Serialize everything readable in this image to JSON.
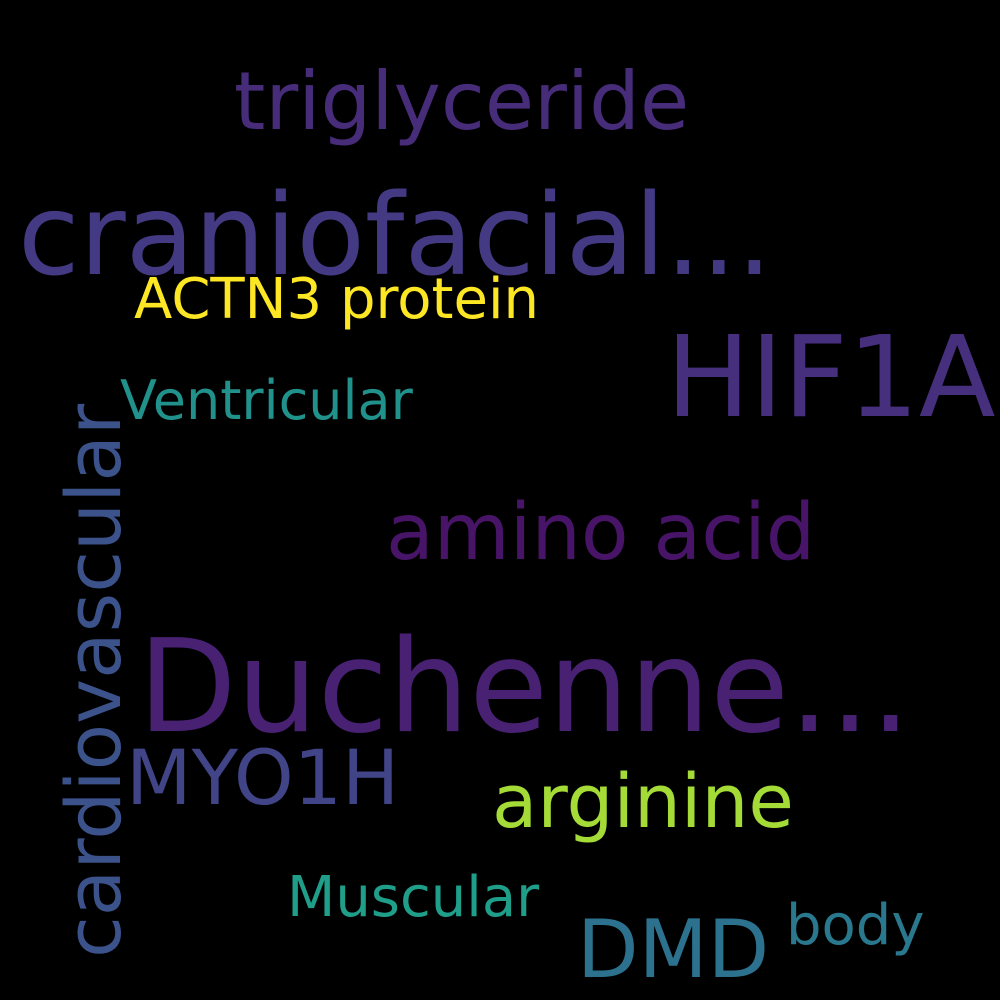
{
  "words": {
    "triglyceride": {
      "text": "triglyceride",
      "color": "#472c7a"
    },
    "craniofacial": {
      "text": "craniofacial...",
      "color": "#443a83"
    },
    "actn3": {
      "text": "ACTN3 protein",
      "color": "#fde725"
    },
    "hif1a": {
      "text": "HIF1A",
      "color": "#46307e"
    },
    "ventricular": {
      "text": "Ventricular",
      "color": "#21918c"
    },
    "amino_acid": {
      "text": "amino acid",
      "color": "#481467"
    },
    "duchenne": {
      "text": "Duchenne...",
      "color": "#482173"
    },
    "myo1h": {
      "text": "MYO1H",
      "color": "#414487"
    },
    "arginine": {
      "text": "arginine",
      "color": "#a5db36"
    },
    "muscular": {
      "text": "Muscular",
      "color": "#1f9e89"
    },
    "dmd": {
      "text": "DMD",
      "color": "#2c728e"
    },
    "body": {
      "text": "body",
      "color": "#2a788e"
    },
    "cardiovascular": {
      "text": "cardiovascular",
      "color": "#3b528b"
    }
  },
  "background_color": "#000000"
}
